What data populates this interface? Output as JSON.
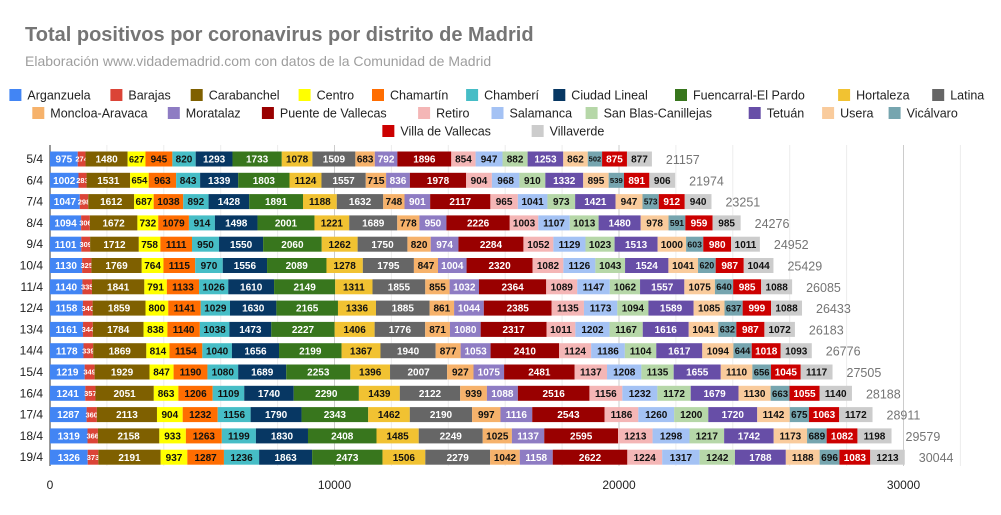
{
  "chart_data": {
    "type": "bar",
    "orientation": "horizontal",
    "stacked": true,
    "title": "Total positivos por coronavirus por distrito de Madrid",
    "subtitle": "Elaboración www.vidademadrid.com con datos de la Comunidad de Madrid",
    "xlim": [
      0,
      32000
    ],
    "x_ticks": [
      "0",
      "10000",
      "20000",
      "30000"
    ],
    "x_tick_values": [
      0,
      10000,
      20000,
      30000
    ],
    "grid": true,
    "legend_position": "top",
    "categories": [
      "5/4",
      "6/4",
      "7/4",
      "8/4",
      "9/4",
      "10/4",
      "11/4",
      "12/4",
      "13/4",
      "14/4",
      "15/4",
      "16/4",
      "17/4",
      "18/4",
      "19/4"
    ],
    "totals": [
      21157,
      21974,
      23251,
      24276,
      24952,
      25429,
      26085,
      26433,
      26183,
      26776,
      27505,
      28188,
      28911,
      29579,
      30044
    ],
    "series": [
      {
        "name": "Arganzuela",
        "color": "#4285f4",
        "values": [
          975,
          1002,
          1047,
          1094,
          1101,
          1130,
          1140,
          1158,
          1161,
          1178,
          1219,
          1241,
          1287,
          1319,
          1326
        ]
      },
      {
        "name": "Barajas",
        "color": "#db4437",
        "values": [
          274,
          283,
          298,
          306,
          309,
          325,
          335,
          340,
          344,
          339,
          349,
          357,
          360,
          366,
          373
        ]
      },
      {
        "name": "Carabanchel",
        "color": "#7f6000",
        "values": [
          1480,
          1531,
          1612,
          1672,
          1712,
          1769,
          1841,
          1859,
          1784,
          1869,
          1929,
          2051,
          2113,
          2158,
          2191
        ]
      },
      {
        "name": "Centro",
        "color": "#ffff00",
        "values": [
          627,
          654,
          687,
          732,
          758,
          764,
          791,
          800,
          838,
          814,
          847,
          863,
          904,
          933,
          937
        ]
      },
      {
        "name": "Chamartín",
        "color": "#ff6d01",
        "values": [
          945,
          963,
          1038,
          1079,
          1111,
          1115,
          1133,
          1141,
          1140,
          1154,
          1190,
          1206,
          1232,
          1263,
          1287
        ]
      },
      {
        "name": "Chamberí",
        "color": "#46bdc6",
        "values": [
          820,
          843,
          892,
          914,
          950,
          970,
          1026,
          1029,
          1038,
          1040,
          1080,
          1109,
          1156,
          1199,
          1236
        ]
      },
      {
        "name": "Ciudad Lineal",
        "color": "#073763",
        "values": [
          1293,
          1339,
          1428,
          1498,
          1550,
          1556,
          1610,
          1630,
          1473,
          1656,
          1689,
          1740,
          1790,
          1830,
          1863
        ]
      },
      {
        "name": "Fuencarral-El Pardo",
        "color": "#38761d",
        "values": [
          1733,
          1803,
          1891,
          2001,
          2060,
          2089,
          2149,
          2165,
          2227,
          2199,
          2253,
          2290,
          2343,
          2408,
          2473
        ]
      },
      {
        "name": "Hortaleza",
        "color": "#f1c232",
        "values": [
          1078,
          1124,
          1188,
          1221,
          1262,
          1278,
          1311,
          1336,
          1406,
          1367,
          1396,
          1439,
          1462,
          1485,
          1506
        ]
      },
      {
        "name": "Latina",
        "color": "#666666",
        "values": [
          1509,
          1557,
          1632,
          1689,
          1750,
          1795,
          1855,
          1885,
          1776,
          1940,
          2007,
          2122,
          2190,
          2249,
          2279
        ]
      },
      {
        "name": "Moncloa-Aravaca",
        "color": "#f6b26b",
        "values": [
          683,
          715,
          748,
          778,
          820,
          847,
          855,
          861,
          871,
          877,
          927,
          939,
          997,
          1025,
          1042
        ]
      },
      {
        "name": "Moratalaz",
        "color": "#8e7cc3",
        "values": [
          792,
          836,
          901,
          950,
          974,
          1004,
          1032,
          1044,
          1080,
          1053,
          1075,
          1088,
          1116,
          1137,
          1158
        ]
      },
      {
        "name": "Puente de Vallecas",
        "color": "#990000",
        "values": [
          1896,
          1978,
          2117,
          2226,
          2284,
          2320,
          2364,
          2385,
          2317,
          2410,
          2481,
          2516,
          2543,
          2595,
          2622
        ]
      },
      {
        "name": "Retiro",
        "color": "#f4b6b6",
        "values": [
          854,
          904,
          965,
          1003,
          1052,
          1082,
          1089,
          1135,
          1011,
          1124,
          1137,
          1156,
          1186,
          1213,
          1224
        ]
      },
      {
        "name": "Salamanca",
        "color": "#a4c2f4",
        "values": [
          947,
          968,
          1041,
          1107,
          1129,
          1126,
          1147,
          1173,
          1202,
          1186,
          1208,
          1232,
          1260,
          1298,
          1317
        ]
      },
      {
        "name": "San Blas-Canillejas",
        "color": "#b6d7a8",
        "values": [
          882,
          910,
          973,
          1013,
          1023,
          1043,
          1062,
          1094,
          1167,
          1104,
          1135,
          1172,
          1200,
          1217,
          1242
        ]
      },
      {
        "name": "Tetuán",
        "color": "#674ea7",
        "values": [
          1253,
          1332,
          1421,
          1480,
          1513,
          1524,
          1557,
          1589,
          1616,
          1617,
          1655,
          1679,
          1720,
          1742,
          1788
        ]
      },
      {
        "name": "Usera",
        "color": "#f9cb9c",
        "values": [
          862,
          895,
          947,
          978,
          1000,
          1041,
          1075,
          1085,
          1041,
          1094,
          1110,
          1130,
          1142,
          1173,
          1188
        ]
      },
      {
        "name": "Vicálvaro",
        "color": "#76a5af",
        "values": [
          502,
          539,
          573,
          591,
          603,
          620,
          640,
          637,
          632,
          644,
          656,
          663,
          675,
          689,
          696
        ]
      },
      {
        "name": "Villa de Vallecas",
        "color": "#cc0000",
        "values": [
          875,
          891,
          912,
          959,
          980,
          987,
          985,
          999,
          987,
          1018,
          1045,
          1055,
          1063,
          1082,
          1083
        ]
      },
      {
        "name": "Villaverde",
        "color": "#cccccc",
        "values": [
          877,
          906,
          940,
          985,
          1011,
          1044,
          1088,
          1088,
          1072,
          1093,
          1117,
          1140,
          1172,
          1198,
          1213
        ]
      }
    ]
  }
}
